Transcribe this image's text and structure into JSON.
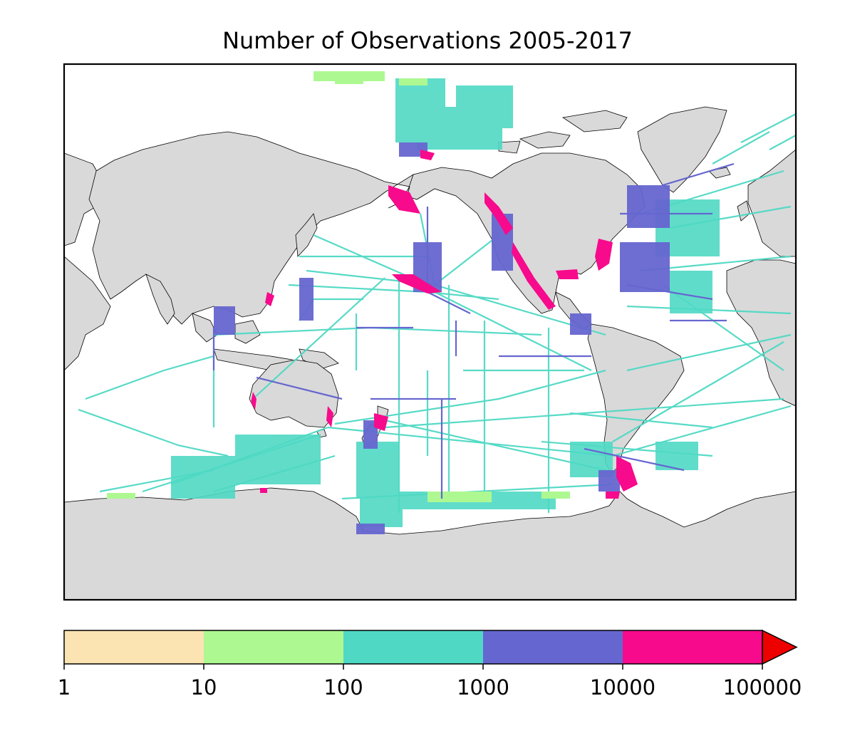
{
  "title": "Number of Observations 2005-2017",
  "colorbar": {
    "bins": [
      {
        "from": 1,
        "to": 10,
        "color": "#fbe3b2"
      },
      {
        "from": 10,
        "to": 100,
        "color": "#adf891"
      },
      {
        "from": 100,
        "to": 1000,
        "color": "#4fd9c4"
      },
      {
        "from": 1000,
        "to": 10000,
        "color": "#6666d0"
      },
      {
        "from": 10000,
        "to": 100000,
        "color": "#f70a8c"
      }
    ],
    "over_color": "#ee0000",
    "ticks": [
      "1",
      "10",
      "100",
      "1000",
      "10000",
      "100000"
    ]
  },
  "colors": {
    "land": "#d9d9d9",
    "ocean": "#ffffff",
    "coast": "#000000"
  }
}
